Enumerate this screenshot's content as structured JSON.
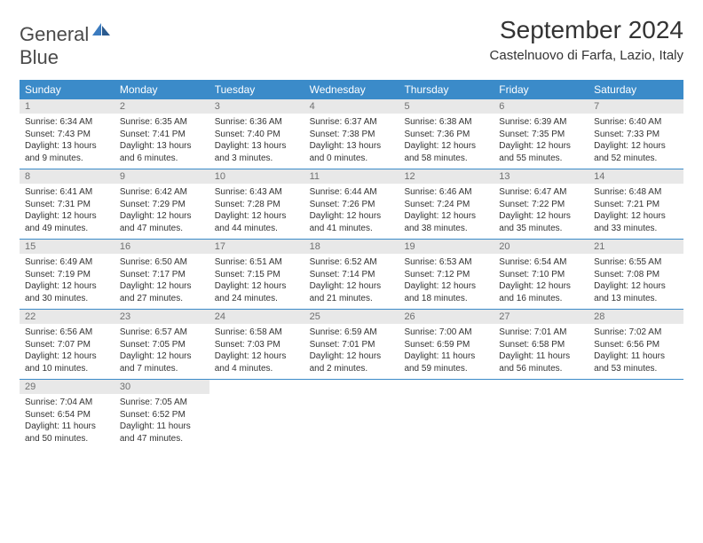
{
  "logo": {
    "text1": "General",
    "text2": "Blue"
  },
  "header": {
    "month_title": "September 2024",
    "location": "Castelnuovo di Farfa, Lazio, Italy"
  },
  "colors": {
    "header_bg": "#3b8bc9",
    "header_text": "#ffffff",
    "day_number_bg": "#e8e8e8",
    "day_number_text": "#707070",
    "body_text": "#333333",
    "border": "#3b8bc9"
  },
  "day_names": [
    "Sunday",
    "Monday",
    "Tuesday",
    "Wednesday",
    "Thursday",
    "Friday",
    "Saturday"
  ],
  "weeks": [
    [
      {
        "n": "1",
        "sunrise": "6:34 AM",
        "sunset": "7:43 PM",
        "daylight": "13 hours and 9 minutes."
      },
      {
        "n": "2",
        "sunrise": "6:35 AM",
        "sunset": "7:41 PM",
        "daylight": "13 hours and 6 minutes."
      },
      {
        "n": "3",
        "sunrise": "6:36 AM",
        "sunset": "7:40 PM",
        "daylight": "13 hours and 3 minutes."
      },
      {
        "n": "4",
        "sunrise": "6:37 AM",
        "sunset": "7:38 PM",
        "daylight": "13 hours and 0 minutes."
      },
      {
        "n": "5",
        "sunrise": "6:38 AM",
        "sunset": "7:36 PM",
        "daylight": "12 hours and 58 minutes."
      },
      {
        "n": "6",
        "sunrise": "6:39 AM",
        "sunset": "7:35 PM",
        "daylight": "12 hours and 55 minutes."
      },
      {
        "n": "7",
        "sunrise": "6:40 AM",
        "sunset": "7:33 PM",
        "daylight": "12 hours and 52 minutes."
      }
    ],
    [
      {
        "n": "8",
        "sunrise": "6:41 AM",
        "sunset": "7:31 PM",
        "daylight": "12 hours and 49 minutes."
      },
      {
        "n": "9",
        "sunrise": "6:42 AM",
        "sunset": "7:29 PM",
        "daylight": "12 hours and 47 minutes."
      },
      {
        "n": "10",
        "sunrise": "6:43 AM",
        "sunset": "7:28 PM",
        "daylight": "12 hours and 44 minutes."
      },
      {
        "n": "11",
        "sunrise": "6:44 AM",
        "sunset": "7:26 PM",
        "daylight": "12 hours and 41 minutes."
      },
      {
        "n": "12",
        "sunrise": "6:46 AM",
        "sunset": "7:24 PM",
        "daylight": "12 hours and 38 minutes."
      },
      {
        "n": "13",
        "sunrise": "6:47 AM",
        "sunset": "7:22 PM",
        "daylight": "12 hours and 35 minutes."
      },
      {
        "n": "14",
        "sunrise": "6:48 AM",
        "sunset": "7:21 PM",
        "daylight": "12 hours and 33 minutes."
      }
    ],
    [
      {
        "n": "15",
        "sunrise": "6:49 AM",
        "sunset": "7:19 PM",
        "daylight": "12 hours and 30 minutes."
      },
      {
        "n": "16",
        "sunrise": "6:50 AM",
        "sunset": "7:17 PM",
        "daylight": "12 hours and 27 minutes."
      },
      {
        "n": "17",
        "sunrise": "6:51 AM",
        "sunset": "7:15 PM",
        "daylight": "12 hours and 24 minutes."
      },
      {
        "n": "18",
        "sunrise": "6:52 AM",
        "sunset": "7:14 PM",
        "daylight": "12 hours and 21 minutes."
      },
      {
        "n": "19",
        "sunrise": "6:53 AM",
        "sunset": "7:12 PM",
        "daylight": "12 hours and 18 minutes."
      },
      {
        "n": "20",
        "sunrise": "6:54 AM",
        "sunset": "7:10 PM",
        "daylight": "12 hours and 16 minutes."
      },
      {
        "n": "21",
        "sunrise": "6:55 AM",
        "sunset": "7:08 PM",
        "daylight": "12 hours and 13 minutes."
      }
    ],
    [
      {
        "n": "22",
        "sunrise": "6:56 AM",
        "sunset": "7:07 PM",
        "daylight": "12 hours and 10 minutes."
      },
      {
        "n": "23",
        "sunrise": "6:57 AM",
        "sunset": "7:05 PM",
        "daylight": "12 hours and 7 minutes."
      },
      {
        "n": "24",
        "sunrise": "6:58 AM",
        "sunset": "7:03 PM",
        "daylight": "12 hours and 4 minutes."
      },
      {
        "n": "25",
        "sunrise": "6:59 AM",
        "sunset": "7:01 PM",
        "daylight": "12 hours and 2 minutes."
      },
      {
        "n": "26",
        "sunrise": "7:00 AM",
        "sunset": "6:59 PM",
        "daylight": "11 hours and 59 minutes."
      },
      {
        "n": "27",
        "sunrise": "7:01 AM",
        "sunset": "6:58 PM",
        "daylight": "11 hours and 56 minutes."
      },
      {
        "n": "28",
        "sunrise": "7:02 AM",
        "sunset": "6:56 PM",
        "daylight": "11 hours and 53 minutes."
      }
    ],
    [
      {
        "n": "29",
        "sunrise": "7:04 AM",
        "sunset": "6:54 PM",
        "daylight": "11 hours and 50 minutes."
      },
      {
        "n": "30",
        "sunrise": "7:05 AM",
        "sunset": "6:52 PM",
        "daylight": "11 hours and 47 minutes."
      },
      null,
      null,
      null,
      null,
      null
    ]
  ],
  "labels": {
    "sunrise": "Sunrise:",
    "sunset": "Sunset:",
    "daylight": "Daylight:"
  }
}
